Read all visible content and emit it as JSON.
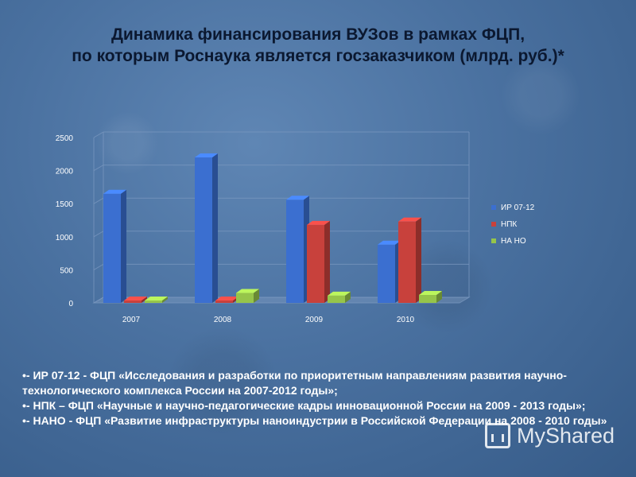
{
  "slide": {
    "title_line1": "Динамика финансирования ВУЗов в рамках ФЦП,",
    "title_line2": "по которым Роснаука является госзаказчиком (млрд. руб.)*"
  },
  "footnotes": [
    "•- ИР 07-12 - ФЦП «Исследования и разработки по приоритетным направлениям развития научно-технологического комплекса России на 2007-2012 годы»;",
    "•- НПК – ФЦП «Научные и научно-педагогические кадры инновационной России на 2009 - 2013 годы»;",
    "•- НАНО - ФЦП «Развитие инфраструктуры наноиндустрии в Российской Федерации на 2008 - 2010 годы»"
  ],
  "watermark": {
    "text": "MyShared",
    "icon": "myshared-logo-icon"
  },
  "chart_data": {
    "type": "bar",
    "title": "",
    "xlabel": "",
    "ylabel": "",
    "categories": [
      "2007",
      "2008",
      "2009",
      "2010"
    ],
    "series": [
      {
        "name": "ИР 07-12",
        "values": [
          1650,
          2200,
          1560,
          880
        ],
        "color": "#3b6fd0"
      },
      {
        "name": "НПК",
        "values": [
          0,
          0,
          1180,
          1230
        ],
        "color": "#c8413c"
      },
      {
        "name": "НА НО",
        "values": [
          0,
          150,
          110,
          120
        ],
        "color": "#96c54a"
      }
    ],
    "ylim": [
      0,
      2500
    ],
    "yticks": [
      "0",
      "500",
      "1000",
      "1500",
      "2000",
      "2500"
    ],
    "grid": true,
    "legend": "right"
  }
}
